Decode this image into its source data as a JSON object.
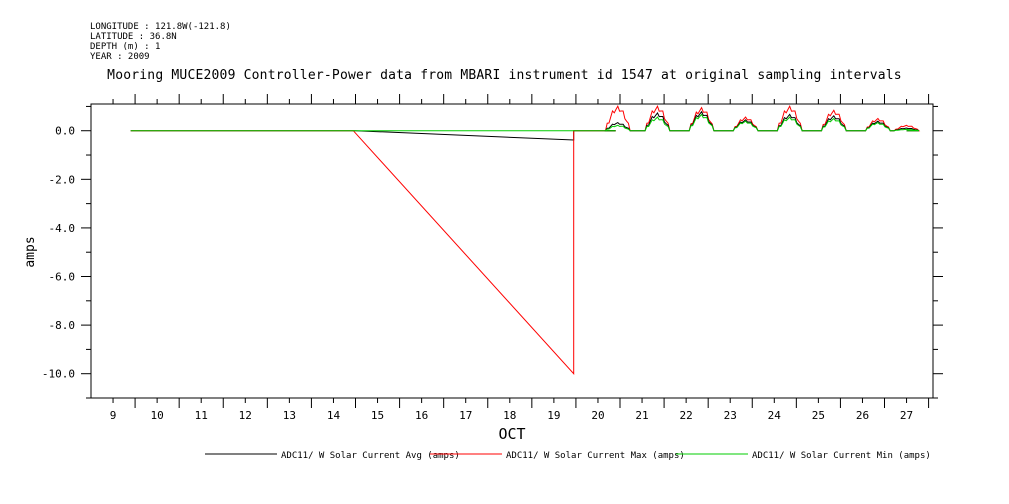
{
  "meta": {
    "longitude": "LONGITUDE : 121.8W(-121.8)",
    "latitude": "LATITUDE : 36.8N",
    "depth": "DEPTH (m) : 1",
    "year": "YEAR : 2009"
  },
  "chart_data": {
    "type": "line",
    "title": "Mooring MUCE2009 Controller-Power data from MBARI instrument id 1547 at original sampling intervals",
    "xlabel": "OCT",
    "ylabel": "amps",
    "xlim": [
      8.5,
      27.6
    ],
    "ylim": [
      -11.0,
      1.1
    ],
    "x_ticks": [
      9,
      10,
      11,
      12,
      13,
      14,
      15,
      16,
      17,
      18,
      19,
      20,
      21,
      22,
      23,
      24,
      25,
      26,
      27
    ],
    "y_ticks": [
      0.0,
      -2.0,
      -4.0,
      -6.0,
      -8.0,
      -10.0
    ],
    "y_tick_labels": [
      "0.0",
      "-2.0",
      "-4.0",
      "-6.0",
      "-8.0",
      "-10.0"
    ],
    "legend_position": "bottom",
    "series": [
      {
        "name": "ADC11/ W Solar Current Avg (amps)",
        "color": "#000000",
        "x": [
          9.4,
          14.5,
          19.45,
          19.45,
          20.4
        ],
        "y": [
          0.0,
          0.0,
          -0.38,
          0.0,
          0.0
        ]
      },
      {
        "name": "ADC11/ W Solar Current Max (amps)",
        "color": "#ff0000",
        "x": [
          9.4,
          14.45,
          19.45,
          19.45,
          20.4
        ],
        "y": [
          0.0,
          0.0,
          -10.0,
          0.0,
          0.0
        ]
      },
      {
        "name": "ADC11/ W Solar Current Min (amps)",
        "color": "#00cc00",
        "x": [
          9.4,
          20.4
        ],
        "y": [
          0.0,
          0.0
        ]
      }
    ],
    "daily_peaks": [
      {
        "day": 20.45,
        "max": 0.9,
        "avg": 0.3,
        "min": 0.2
      },
      {
        "day": 21.35,
        "max": 0.9,
        "avg": 0.65,
        "min": 0.5
      },
      {
        "day": 22.35,
        "max": 0.85,
        "avg": 0.7,
        "min": 0.6
      },
      {
        "day": 23.35,
        "max": 0.5,
        "avg": 0.4,
        "min": 0.35
      },
      {
        "day": 24.35,
        "max": 0.9,
        "avg": 0.6,
        "min": 0.5
      },
      {
        "day": 25.35,
        "max": 0.75,
        "avg": 0.55,
        "min": 0.45
      },
      {
        "day": 26.35,
        "max": 0.45,
        "avg": 0.35,
        "min": 0.3
      },
      {
        "day": 27.0,
        "max": 0.2,
        "avg": 0.1,
        "min": 0.05
      }
    ]
  }
}
